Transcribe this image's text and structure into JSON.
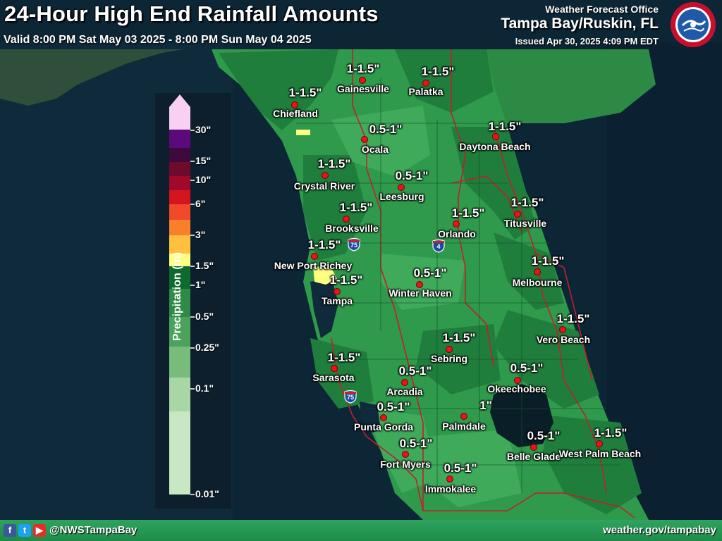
{
  "title": "24-Hour High End Rainfall Amounts",
  "valid": "Valid 8:00 PM Sat May 03 2025 - 8:00 PM Sun May 04 2025",
  "office": {
    "label": "Weather Forecast Office",
    "name": "Tampa Bay/Ruskin, FL",
    "issued": "Issued Apr 30, 2025 4:09 PM EDT"
  },
  "footer": {
    "handle": "@NWSTampaBay",
    "website": "weather.gov/tampabay",
    "icons": [
      "facebook-icon",
      "twitter-icon",
      "youtube-icon"
    ]
  },
  "legend": {
    "title": "Precipitation (in)",
    "ticks": [
      "30\"",
      "15\"",
      "10\"",
      "6\"",
      "3\"",
      "1.5\"",
      "1\"",
      "0.5\"",
      "0.25\"",
      "0.1\"",
      "0.01\""
    ],
    "colors": [
      "#f8d0f4",
      "#5a0a7a",
      "#3e0a3e",
      "#6e0a2a",
      "#a00a2a",
      "#d4141e",
      "#f04a2a",
      "#f8802a",
      "#ffc040",
      "#ffff80",
      "#0e6a2e",
      "#2e8a46",
      "#4aa25c",
      "#78bc7c",
      "#a8d6a4",
      "#c8e8c4"
    ]
  },
  "cities": [
    {
      "name": "Gainesville",
      "amount": "1-1.5\""
    },
    {
      "name": "Palatka",
      "amount": "1-1.5\""
    },
    {
      "name": "Chiefland",
      "amount": "1-1.5\""
    },
    {
      "name": "Ocala",
      "amount": "0.5-1\""
    },
    {
      "name": "Daytona Beach",
      "amount": "1-1.5\""
    },
    {
      "name": "Crystal River",
      "amount": "1-1.5\""
    },
    {
      "name": "Leesburg",
      "amount": "0.5-1\""
    },
    {
      "name": "Brooksville",
      "amount": "1-1.5\""
    },
    {
      "name": "Orlando",
      "amount": "1-1.5\""
    },
    {
      "name": "Titusville",
      "amount": "1-1.5\""
    },
    {
      "name": "New Port Richey",
      "amount": "1-1.5\""
    },
    {
      "name": "Tampa",
      "amount": "1-1.5\""
    },
    {
      "name": "Winter Haven",
      "amount": "0.5-1\""
    },
    {
      "name": "Melbourne",
      "amount": "1-1.5\""
    },
    {
      "name": "Vero Beach",
      "amount": "1-1.5\""
    },
    {
      "name": "Sebring",
      "amount": "1-1.5\""
    },
    {
      "name": "Sarasota",
      "amount": "1-1.5\""
    },
    {
      "name": "Arcadia",
      "amount": "0.5-1\""
    },
    {
      "name": "Okeechobee",
      "amount": "0.5-1\""
    },
    {
      "name": "Punta Gorda",
      "amount": "0.5-1\""
    },
    {
      "name": "Palmdale",
      "amount": "1\""
    },
    {
      "name": "Belle Glade",
      "amount": "0.5-1\""
    },
    {
      "name": "West Palm Beach",
      "amount": "1-1.5\""
    },
    {
      "name": "Fort Myers",
      "amount": "0.5-1\""
    },
    {
      "name": "Immokalee",
      "amount": "0.5-1\""
    }
  ],
  "highways": [
    "75",
    "4",
    "75"
  ]
}
